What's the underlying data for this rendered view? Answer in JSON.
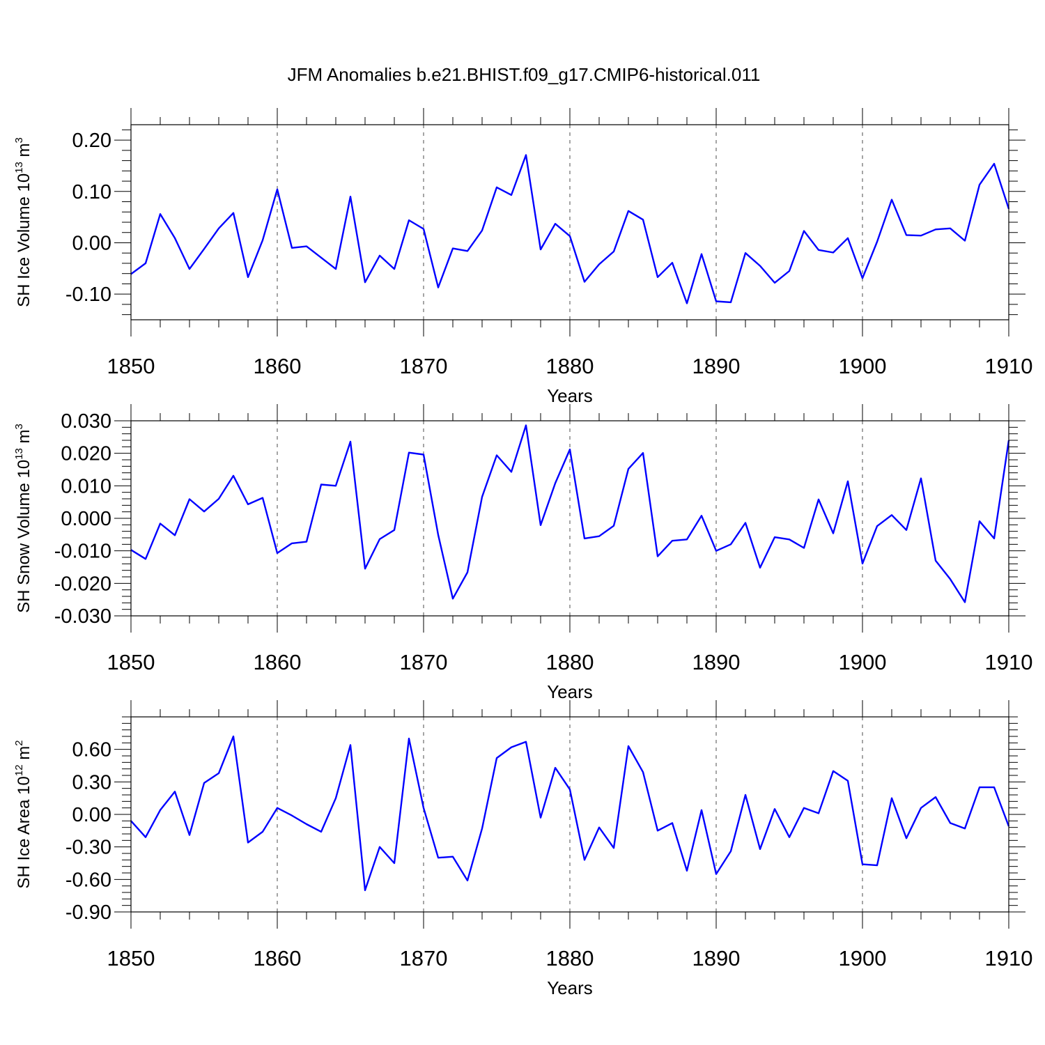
{
  "title": "JFM Anomalies b.e21.BHIST.f09_g17.CMIP6-historical.011",
  "colors": {
    "line": "#0000ff",
    "axis": "#000000"
  },
  "chart_data": [
    {
      "type": "line",
      "ylabel_main": "SH Ice Volume 10",
      "ylabel_exp": "13",
      "ylabel_unit": " m",
      "ylabel_unit_exp": "3",
      "xlabel": "Years",
      "xlim": [
        1850,
        1910
      ],
      "ylim": [
        -0.15,
        0.23
      ],
      "xticks": [
        "1850",
        "1860",
        "1870",
        "1880",
        "1890",
        "1900",
        "1910"
      ],
      "yticks": [
        {
          "v": 0.2,
          "label": "0.20"
        },
        {
          "v": 0.1,
          "label": "0.10"
        },
        {
          "v": 0.0,
          "label": "0.00"
        },
        {
          "v": -0.1,
          "label": "-0.10"
        }
      ],
      "series": [
        {
          "name": "SH Ice Volume",
          "x": [
            1850,
            1851,
            1852,
            1853,
            1854,
            1855,
            1856,
            1857,
            1858,
            1859,
            1860,
            1861,
            1862,
            1863,
            1864,
            1865,
            1866,
            1867,
            1868,
            1869,
            1870,
            1871,
            1872,
            1873,
            1874,
            1875,
            1876,
            1877,
            1878,
            1879,
            1880,
            1881,
            1882,
            1883,
            1884,
            1885,
            1886,
            1887,
            1888,
            1889,
            1890,
            1891,
            1892,
            1893,
            1894,
            1895,
            1896,
            1897,
            1898,
            1899,
            1900,
            1901,
            1902,
            1903,
            1904,
            1905,
            1906,
            1907,
            1908,
            1909,
            1910
          ],
          "values": [
            -0.061,
            -0.04,
            0.056,
            0.009,
            -0.051,
            -0.012,
            0.028,
            0.058,
            -0.067,
            0.005,
            0.104,
            -0.01,
            -0.007,
            -0.029,
            -0.051,
            0.09,
            -0.077,
            -0.025,
            -0.051,
            0.044,
            0.027,
            -0.087,
            -0.011,
            -0.016,
            0.024,
            0.108,
            0.093,
            0.171,
            -0.013,
            0.037,
            0.013,
            -0.076,
            -0.042,
            -0.017,
            0.062,
            0.045,
            -0.067,
            -0.039,
            -0.118,
            -0.022,
            -0.114,
            -0.116,
            -0.02,
            -0.045,
            -0.078,
            -0.055,
            0.023,
            -0.014,
            -0.019,
            0.009,
            -0.069,
            0.002,
            0.084,
            0.015,
            0.014,
            0.026,
            0.028,
            0.004,
            0.113,
            0.154,
            0.066
          ]
        }
      ]
    },
    {
      "type": "line",
      "ylabel_main": "SH Snow Volume 10",
      "ylabel_exp": "13",
      "ylabel_unit": " m",
      "ylabel_unit_exp": "3",
      "xlabel": "Years",
      "xlim": [
        1850,
        1910
      ],
      "ylim": [
        -0.03,
        0.03
      ],
      "xticks": [
        "1850",
        "1860",
        "1870",
        "1880",
        "1890",
        "1900",
        "1910"
      ],
      "yticks": [
        {
          "v": 0.03,
          "label": "0.030"
        },
        {
          "v": 0.02,
          "label": "0.020"
        },
        {
          "v": 0.01,
          "label": "0.010"
        },
        {
          "v": 0.0,
          "label": "0.000"
        },
        {
          "v": -0.01,
          "label": "-0.010"
        },
        {
          "v": -0.02,
          "label": "-0.020"
        },
        {
          "v": -0.03,
          "label": "-0.030"
        }
      ],
      "series": [
        {
          "name": "SH Snow Volume",
          "x": [
            1850,
            1851,
            1852,
            1853,
            1854,
            1855,
            1856,
            1857,
            1858,
            1859,
            1860,
            1861,
            1862,
            1863,
            1864,
            1865,
            1866,
            1867,
            1868,
            1869,
            1870,
            1871,
            1872,
            1873,
            1874,
            1875,
            1876,
            1877,
            1878,
            1879,
            1880,
            1881,
            1882,
            1883,
            1884,
            1885,
            1886,
            1887,
            1888,
            1889,
            1890,
            1891,
            1892,
            1893,
            1894,
            1895,
            1896,
            1897,
            1898,
            1899,
            1900,
            1901,
            1902,
            1903,
            1904,
            1905,
            1906,
            1907,
            1908,
            1909,
            1910
          ],
          "values": [
            -0.0097,
            -0.0125,
            -0.0016,
            -0.0052,
            0.0059,
            0.0021,
            0.006,
            0.0131,
            0.0043,
            0.0063,
            -0.0107,
            -0.0077,
            -0.0072,
            0.0104,
            0.01,
            0.0236,
            -0.0155,
            -0.0064,
            -0.0036,
            0.0202,
            0.0196,
            -0.0051,
            -0.0247,
            -0.0166,
            0.0066,
            0.0194,
            0.0143,
            0.0286,
            -0.0021,
            0.0108,
            0.0212,
            -0.0062,
            -0.0055,
            -0.0023,
            0.0152,
            0.0201,
            -0.0117,
            -0.0069,
            -0.0065,
            0.0008,
            -0.01,
            -0.008,
            -0.0014,
            -0.0152,
            -0.0058,
            -0.0065,
            -0.0091,
            0.0058,
            -0.0046,
            0.0114,
            -0.0139,
            -0.0024,
            0.001,
            -0.0036,
            0.0123,
            -0.013,
            -0.0187,
            -0.0258,
            -0.0009,
            -0.0062,
            0.024
          ]
        }
      ]
    },
    {
      "type": "line",
      "ylabel_main": "SH Ice Area 10",
      "ylabel_exp": "12",
      "ylabel_unit": " m",
      "ylabel_unit_exp": "2",
      "xlabel": "Years",
      "xlim": [
        1850,
        1910
      ],
      "ylim": [
        -0.9,
        0.9
      ],
      "xticks": [
        "1850",
        "1860",
        "1870",
        "1880",
        "1890",
        "1900",
        "1910"
      ],
      "yticks": [
        {
          "v": 0.6,
          "label": "0.60"
        },
        {
          "v": 0.3,
          "label": "0.30"
        },
        {
          "v": 0.0,
          "label": "0.00"
        },
        {
          "v": -0.3,
          "label": "-0.30"
        },
        {
          "v": -0.6,
          "label": "-0.60"
        },
        {
          "v": -0.9,
          "label": "-0.90"
        }
      ],
      "series": [
        {
          "name": "SH Ice Area",
          "x": [
            1850,
            1851,
            1852,
            1853,
            1854,
            1855,
            1856,
            1857,
            1858,
            1859,
            1860,
            1861,
            1862,
            1863,
            1864,
            1865,
            1866,
            1867,
            1868,
            1869,
            1870,
            1871,
            1872,
            1873,
            1874,
            1875,
            1876,
            1877,
            1878,
            1879,
            1880,
            1881,
            1882,
            1883,
            1884,
            1885,
            1886,
            1887,
            1888,
            1889,
            1890,
            1891,
            1892,
            1893,
            1894,
            1895,
            1896,
            1897,
            1898,
            1899,
            1900,
            1901,
            1902,
            1903,
            1904,
            1905,
            1906,
            1907,
            1908,
            1909,
            1910
          ],
          "values": [
            -0.06,
            -0.21,
            0.04,
            0.21,
            -0.19,
            0.29,
            0.38,
            0.72,
            -0.26,
            -0.16,
            0.06,
            -0.01,
            -0.09,
            -0.16,
            0.15,
            0.64,
            -0.7,
            -0.3,
            -0.45,
            0.7,
            0.06,
            -0.4,
            -0.39,
            -0.61,
            -0.13,
            0.52,
            0.62,
            0.67,
            -0.03,
            0.43,
            0.23,
            -0.42,
            -0.12,
            -0.31,
            0.63,
            0.39,
            -0.15,
            -0.08,
            -0.52,
            0.04,
            -0.55,
            -0.34,
            0.18,
            -0.32,
            0.05,
            -0.21,
            0.06,
            0.01,
            0.4,
            0.31,
            -0.46,
            -0.47,
            0.15,
            -0.22,
            0.06,
            0.16,
            -0.08,
            -0.13,
            0.25,
            0.25,
            -0.11
          ]
        }
      ]
    }
  ]
}
